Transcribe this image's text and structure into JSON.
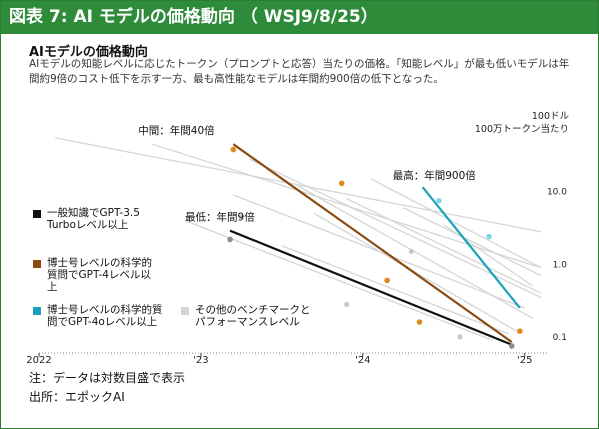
{
  "header": {
    "title": "図表 7: AI モデルの価格動向 （ WSJ9/8/25）"
  },
  "chart_data": {
    "type": "line",
    "title": "AIモデルの価格動向",
    "subtitle": "AIモデルの知能レベルに応じたトークン（プロンプトと応答）当たりの価格。「知能レベル」が最も低いモデルは年間約9倍のコスト低下を示す一方、最も高性能なモデルは年間約900倍の低下となった。",
    "y_unit_label": [
      "100ドル",
      "100万トークン当たり"
    ],
    "y_scale": "log",
    "ylim": [
      0.06,
      100
    ],
    "xlim": [
      2022.0,
      2025.15
    ],
    "x_ticks": [
      {
        "value": 2022.0,
        "label": "2022"
      },
      {
        "value": 2023.0,
        "label": "'23"
      },
      {
        "value": 2024.0,
        "label": "'24"
      },
      {
        "value": 2025.0,
        "label": "'25"
      }
    ],
    "y_ticks": [
      {
        "value": 10,
        "label": "10.0"
      },
      {
        "value": 1,
        "label": "1.0"
      },
      {
        "value": 0.1,
        "label": "0.1"
      }
    ],
    "series": [
      {
        "name": "一般知識でGPT-3.5 Turboレベル以上",
        "color": "#111111",
        "points": [
          [
            2023.18,
            2.2
          ],
          [
            2024.92,
            0.075
          ]
        ],
        "line": [
          [
            2023.18,
            2.9
          ],
          [
            2024.92,
            0.078
          ]
        ]
      },
      {
        "name": "博士号レベルの科学的質問でGPT-4レベル以上",
        "color": "#8b4a0f",
        "points": [
          [
            2023.2,
            38
          ],
          [
            2023.87,
            13
          ],
          [
            2024.15,
            0.6
          ],
          [
            2024.35,
            0.16
          ],
          [
            2024.97,
            0.12
          ]
        ],
        "line": [
          [
            2023.2,
            45
          ],
          [
            2024.92,
            0.085
          ]
        ]
      },
      {
        "name": "博士号レベルの科学的質問でGPT-4oレベル以上",
        "color": "#1aa3b8",
        "points": [
          [
            2024.47,
            7.5
          ],
          [
            2024.78,
            2.4
          ]
        ],
        "line": [
          [
            2024.37,
            11.5
          ],
          [
            2024.97,
            0.25
          ]
        ]
      },
      {
        "name": "その他のベンチマークとパフォーマンスレベル",
        "color": "#d5d5d5",
        "lines": [
          [
            [
              2022.1,
              55
            ],
            [
              2025.1,
              2.8
            ]
          ],
          [
            [
              2022.7,
              45
            ],
            [
              2025.1,
              0.9
            ]
          ],
          [
            [
              2023.3,
              28
            ],
            [
              2025.1,
              0.35
            ]
          ],
          [
            [
              2023.6,
              12
            ],
            [
              2025.05,
              0.18
            ]
          ],
          [
            [
              2023.9,
              8
            ],
            [
              2025.1,
              0.4
            ]
          ],
          [
            [
              2024.05,
              15
            ],
            [
              2025.1,
              0.9
            ]
          ],
          [
            [
              2023.7,
              5
            ],
            [
              2024.95,
              0.12
            ]
          ],
          [
            [
              2023.2,
              9
            ],
            [
              2025.0,
              0.25
            ]
          ],
          [
            [
              2024.25,
              6
            ],
            [
              2025.1,
              0.7
            ]
          ],
          [
            [
              2023.5,
              1.8
            ],
            [
              2024.9,
              0.11
            ]
          ],
          [
            [
              2022.9,
              4
            ],
            [
              2024.8,
              0.09
            ]
          ],
          [
            [
              2024.5,
              3.5
            ],
            [
              2025.05,
              0.5
            ]
          ]
        ],
        "points": [
          [
            2023.25,
            4.5
          ],
          [
            2024.3,
            1.5
          ],
          [
            2024.6,
            0.1
          ],
          [
            2023.9,
            0.28
          ]
        ]
      }
    ],
    "annotations": [
      {
        "text": "中間：年間40倍",
        "x": 2023.2,
        "y": 45
      },
      {
        "text": "最高：年間900倍",
        "x": 2024.37,
        "y": 11.5
      },
      {
        "text": "最低：年間9倍",
        "x": 2023.18,
        "y": 2.9
      }
    ],
    "note": "注：データは対数目盛で表示",
    "source": "出所：エポックAI"
  }
}
